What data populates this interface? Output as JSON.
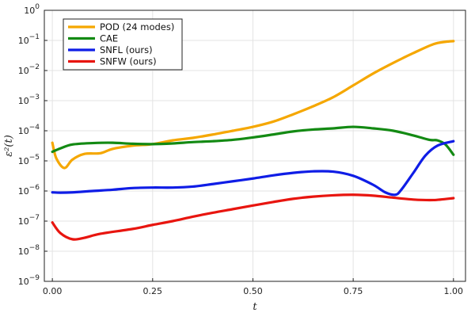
{
  "chart_data": {
    "type": "line",
    "title": "",
    "xlabel": "t",
    "ylabel": "ε²(t)",
    "xlim": [
      -0.02,
      1.03
    ],
    "ylim_log10": [
      -9,
      0
    ],
    "y_scale": "log",
    "x_ticks": [
      0,
      0.25,
      0.5,
      0.75,
      1.0
    ],
    "x_tick_labels": [
      "0.00",
      "0.25",
      "0.50",
      "0.75",
      "1.00"
    ],
    "y_tick_exponents": [
      -9,
      -8,
      -7,
      -6,
      -5,
      -4,
      -3,
      -2,
      -1,
      0
    ],
    "y_tick_base": "10",
    "grid": true,
    "legend_position": "top-left",
    "series": [
      {
        "name": "POD (24 modes)",
        "color": "#f5a700",
        "points": [
          [
            0.0,
            4e-05
          ],
          [
            0.01,
            1.2e-05
          ],
          [
            0.03,
            5.8e-06
          ],
          [
            0.05,
            1.1e-05
          ],
          [
            0.08,
            1.7e-05
          ],
          [
            0.12,
            1.8e-05
          ],
          [
            0.15,
            2.5e-05
          ],
          [
            0.2,
            3.2e-05
          ],
          [
            0.25,
            3.6e-05
          ],
          [
            0.3,
            4.8e-05
          ],
          [
            0.35,
            5.8e-05
          ],
          [
            0.4,
            7.5e-05
          ],
          [
            0.45,
            0.0001
          ],
          [
            0.5,
            0.000135
          ],
          [
            0.55,
            0.0002
          ],
          [
            0.6,
            0.00035
          ],
          [
            0.65,
            0.00065
          ],
          [
            0.7,
            0.0013
          ],
          [
            0.75,
            0.0032
          ],
          [
            0.8,
            0.008
          ],
          [
            0.85,
            0.018
          ],
          [
            0.9,
            0.038
          ],
          [
            0.95,
            0.075
          ],
          [
            0.98,
            0.09
          ],
          [
            1.0,
            0.095
          ]
        ]
      },
      {
        "name": "CAE",
        "color": "#138a13",
        "points": [
          [
            0.0,
            2e-05
          ],
          [
            0.02,
            2.6e-05
          ],
          [
            0.05,
            3.5e-05
          ],
          [
            0.1,
            3.9e-05
          ],
          [
            0.15,
            4e-05
          ],
          [
            0.2,
            3.7e-05
          ],
          [
            0.25,
            3.6e-05
          ],
          [
            0.3,
            3.8e-05
          ],
          [
            0.35,
            4.2e-05
          ],
          [
            0.4,
            4.5e-05
          ],
          [
            0.45,
            5e-05
          ],
          [
            0.5,
            6e-05
          ],
          [
            0.55,
            7.5e-05
          ],
          [
            0.6,
            9.5e-05
          ],
          [
            0.65,
            0.00011
          ],
          [
            0.7,
            0.00012
          ],
          [
            0.75,
            0.000135
          ],
          [
            0.8,
            0.00012
          ],
          [
            0.85,
            0.0001
          ],
          [
            0.9,
            7e-05
          ],
          [
            0.94,
            5e-05
          ],
          [
            0.96,
            4.8e-05
          ],
          [
            0.98,
            3.5e-05
          ],
          [
            1.0,
            1.6e-05
          ]
        ]
      },
      {
        "name": "SNFL (ours)",
        "color": "#0f1de6",
        "points": [
          [
            0.0,
            9e-07
          ],
          [
            0.02,
            8.8e-07
          ],
          [
            0.05,
            9e-07
          ],
          [
            0.1,
            1e-06
          ],
          [
            0.15,
            1.1e-06
          ],
          [
            0.2,
            1.25e-06
          ],
          [
            0.25,
            1.3e-06
          ],
          [
            0.3,
            1.3e-06
          ],
          [
            0.35,
            1.4e-06
          ],
          [
            0.4,
            1.7e-06
          ],
          [
            0.45,
            2.1e-06
          ],
          [
            0.5,
            2.6e-06
          ],
          [
            0.55,
            3.3e-06
          ],
          [
            0.6,
            4e-06
          ],
          [
            0.65,
            4.5e-06
          ],
          [
            0.7,
            4.4e-06
          ],
          [
            0.75,
            3.2e-06
          ],
          [
            0.8,
            1.6e-06
          ],
          [
            0.83,
            9e-07
          ],
          [
            0.855,
            7.5e-07
          ],
          [
            0.87,
            1.1e-06
          ],
          [
            0.9,
            4e-06
          ],
          [
            0.93,
            1.5e-05
          ],
          [
            0.96,
            3.2e-05
          ],
          [
            1.0,
            4.5e-05
          ]
        ]
      },
      {
        "name": "SNFW (ours)",
        "color": "#e8150f",
        "points": [
          [
            0.0,
            9e-08
          ],
          [
            0.02,
            4e-08
          ],
          [
            0.05,
            2.5e-08
          ],
          [
            0.08,
            2.8e-08
          ],
          [
            0.12,
            3.8e-08
          ],
          [
            0.2,
            5.5e-08
          ],
          [
            0.25,
            7.5e-08
          ],
          [
            0.3,
            1e-07
          ],
          [
            0.35,
            1.4e-07
          ],
          [
            0.4,
            1.9e-07
          ],
          [
            0.45,
            2.5e-07
          ],
          [
            0.5,
            3.3e-07
          ],
          [
            0.55,
            4.3e-07
          ],
          [
            0.6,
            5.5e-07
          ],
          [
            0.65,
            6.5e-07
          ],
          [
            0.7,
            7.2e-07
          ],
          [
            0.75,
            7.5e-07
          ],
          [
            0.8,
            7e-07
          ],
          [
            0.85,
            6e-07
          ],
          [
            0.9,
            5.2e-07
          ],
          [
            0.95,
            5e-07
          ],
          [
            1.0,
            5.8e-07
          ]
        ]
      }
    ]
  }
}
